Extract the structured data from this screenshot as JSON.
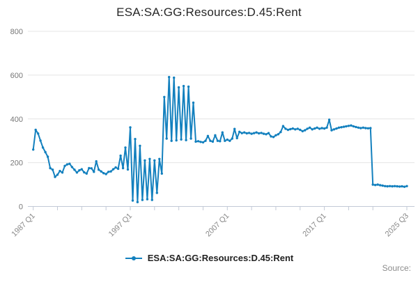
{
  "header": {
    "title": "ESA:SA:GG:Resources:D.45:Rent"
  },
  "legend": {
    "label": "ESA:SA:GG:Resources:D.45:Rent",
    "marker_icon": "line-with-dot-icon"
  },
  "footer": {
    "source_label": "Source:"
  },
  "colors": {
    "series": "#1380be",
    "grid": "#e4e4e4",
    "axis": "#c2c9d6",
    "y_tick_label": "#777777",
    "x_tick_label": "#888888",
    "title": "#262626",
    "source": "#8c8c8c"
  },
  "chart_data": {
    "type": "line",
    "title": "ESA:SA:GG:Resources:D.45:Rent",
    "frequency": "quarterly",
    "x_start": "1987 Q1",
    "x_end": "2025 Q3",
    "ylim": [
      0,
      800
    ],
    "y_ticks": [
      0,
      200,
      400,
      600,
      800
    ],
    "grid": "horizontal",
    "markers": true,
    "legend_position": "bottom",
    "x_tick_label_rotation": -45,
    "x_minor_tick_step_quarters": 10,
    "x_tick_labels": [
      {
        "index": 0,
        "label": "1987 Q1"
      },
      {
        "index": 40,
        "label": "1997 Q1"
      },
      {
        "index": 80,
        "label": "2007 Q1"
      },
      {
        "index": 120,
        "label": "2017 Q1"
      },
      {
        "index": 154,
        "label": "2025 Q3"
      }
    ],
    "series": [
      {
        "name": "ESA:SA:GG:Resources:D.45:Rent",
        "color": "#1380be",
        "values": [
          260,
          350,
          333,
          301,
          269,
          248,
          227,
          175,
          168,
          135,
          145,
          162,
          155,
          185,
          192,
          195,
          180,
          168,
          155,
          165,
          170,
          156,
          150,
          175,
          174,
          158,
          206,
          168,
          160,
          152,
          148,
          158,
          160,
          170,
          178,
          172,
          232,
          175,
          269,
          169,
          361,
          27,
          308,
          20,
          277,
          30,
          210,
          33,
          217,
          30,
          210,
          62,
          217,
          150,
          500,
          310,
          591,
          300,
          588,
          302,
          544,
          306,
          550,
          303,
          547,
          310,
          474,
          296,
          298,
          295,
          293,
          300,
          322,
          300,
          296,
          325,
          300,
          298,
          338,
          300,
          305,
          300,
          310,
          354,
          312,
          341,
          335,
          338,
          334,
          336,
          332,
          335,
          338,
          334,
          336,
          332,
          330,
          335,
          320,
          317,
          325,
          330,
          340,
          367,
          355,
          350,
          353,
          356,
          352,
          355,
          350,
          344,
          348,
          355,
          360,
          352,
          356,
          360,
          355,
          358,
          356,
          360,
          396,
          348,
          352,
          356,
          360,
          362,
          364,
          366,
          368,
          370,
          366,
          363,
          360,
          358,
          360,
          358,
          357,
          358,
          100,
          98,
          100,
          97,
          95,
          93,
          92,
          93,
          92,
          93,
          92,
          91,
          92,
          90,
          93
        ]
      }
    ]
  }
}
